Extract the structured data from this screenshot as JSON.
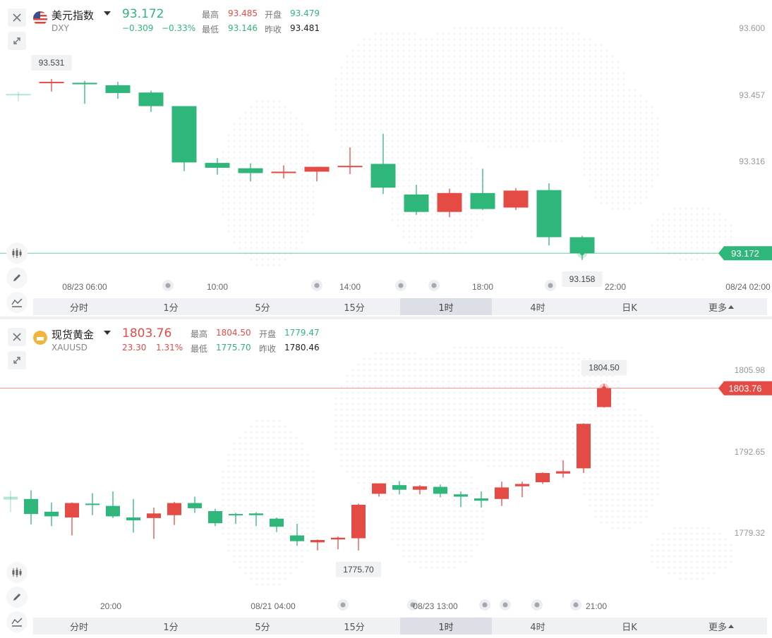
{
  "tabs": [
    {
      "label": "分时"
    },
    {
      "label": "1分"
    },
    {
      "label": "5分"
    },
    {
      "label": "15分"
    },
    {
      "label": "1时",
      "active": true
    },
    {
      "label": "4时"
    },
    {
      "label": "日K"
    },
    {
      "label": "更多"
    }
  ],
  "colors": {
    "up": "#e54b45",
    "down": "#2fb67a",
    "grid": "#e6e8eb"
  },
  "icons": [
    "close-icon",
    "expand-icon",
    "candlestick-icon",
    "pencil-icon",
    "indicator-icon",
    "event-marker-icon",
    "us-flag-icon",
    "gold-coin-icon"
  ],
  "panels": [
    {
      "name": "美元指数",
      "code": "DXY",
      "price": "93.172",
      "price_color": "down",
      "change": "−0.309",
      "change_pct": "−0.33%",
      "stats": {
        "high_label": "最高",
        "high": "93.485",
        "open_label": "开盘",
        "open": "93.479",
        "low_label": "最低",
        "low": "93.146",
        "prev_label": "昨收",
        "prev": "93.481"
      },
      "axis_labels": [
        "93.600",
        "93.457",
        "93.316"
      ],
      "last_price": "93.172",
      "max_label": "93.531",
      "min_label": "93.158",
      "time_labels": [
        "08/23 06:00",
        "10:00",
        "14:00",
        "18:00",
        "22:00",
        "08/24 02:00"
      ],
      "chart_data": {
        "type": "candlestick",
        "ylim": [
          93.12,
          93.65
        ],
        "candles": [
          {
            "o": 93.5,
            "h": 93.505,
            "l": 93.485,
            "c": 93.498,
            "partial": true
          },
          {
            "o": 93.525,
            "h": 93.531,
            "l": 93.505,
            "c": 93.525
          },
          {
            "o": 93.523,
            "h": 93.527,
            "l": 93.48,
            "c": 93.52
          },
          {
            "o": 93.518,
            "h": 93.525,
            "l": 93.49,
            "c": 93.502
          },
          {
            "o": 93.503,
            "h": 93.507,
            "l": 93.463,
            "c": 93.475
          },
          {
            "o": 93.475,
            "h": 93.475,
            "l": 93.341,
            "c": 93.359
          },
          {
            "o": 93.358,
            "h": 93.368,
            "l": 93.334,
            "c": 93.348
          },
          {
            "o": 93.347,
            "h": 93.357,
            "l": 93.32,
            "c": 93.337
          },
          {
            "o": 93.337,
            "h": 93.353,
            "l": 93.326,
            "c": 93.34
          },
          {
            "o": 93.34,
            "h": 93.35,
            "l": 93.32,
            "c": 93.35
          },
          {
            "o": 93.35,
            "h": 93.39,
            "l": 93.335,
            "c": 93.352
          },
          {
            "o": 93.356,
            "h": 93.418,
            "l": 93.294,
            "c": 93.307
          },
          {
            "o": 93.293,
            "h": 93.313,
            "l": 93.251,
            "c": 93.257
          },
          {
            "o": 93.257,
            "h": 93.305,
            "l": 93.246,
            "c": 93.296
          },
          {
            "o": 93.296,
            "h": 93.346,
            "l": 93.261,
            "c": 93.263
          },
          {
            "o": 93.266,
            "h": 93.306,
            "l": 93.261,
            "c": 93.301
          },
          {
            "o": 93.302,
            "h": 93.316,
            "l": 93.188,
            "c": 93.205
          },
          {
            "o": 93.205,
            "h": 93.208,
            "l": 93.158,
            "c": 93.172
          }
        ]
      }
    },
    {
      "name": "现货黄金",
      "code": "XAUUSD",
      "price": "1803.76",
      "price_color": "up",
      "change": "23.30",
      "change_pct": "1.31%",
      "stats": {
        "high_label": "最高",
        "high": "1804.50",
        "open_label": "开盘",
        "open": "1779.47",
        "low_label": "最低",
        "low": "1775.70",
        "prev_label": "昨收",
        "prev": "1780.46"
      },
      "axis_labels": [
        "1805.98",
        "1792.65",
        "1779.32"
      ],
      "last_price": "1803.76",
      "max_label": "1804.50",
      "min_label": "1775.70",
      "time_labels": [
        "20:00",
        "08/21 04:00",
        "08/23 13:00",
        "21:00"
      ],
      "chart_data": {
        "type": "candlestick",
        "ylim": [
          1767.5,
          1810.8
        ],
        "candles": [
          {
            "o": 1785.0,
            "h": 1786.0,
            "l": 1782.3,
            "c": 1784.5,
            "partial": true
          },
          {
            "o": 1784.6,
            "h": 1786.1,
            "l": 1780.2,
            "c": 1782.0
          },
          {
            "o": 1782.4,
            "h": 1784.0,
            "l": 1779.9,
            "c": 1781.6
          },
          {
            "o": 1781.4,
            "h": 1784.0,
            "l": 1778.3,
            "c": 1783.9
          },
          {
            "o": 1783.8,
            "h": 1785.6,
            "l": 1781.8,
            "c": 1783.7
          },
          {
            "o": 1783.4,
            "h": 1785.9,
            "l": 1781.3,
            "c": 1781.6
          },
          {
            "o": 1781.4,
            "h": 1784.6,
            "l": 1778.8,
            "c": 1780.9
          },
          {
            "o": 1781.3,
            "h": 1783.1,
            "l": 1777.7,
            "c": 1782.1
          },
          {
            "o": 1781.8,
            "h": 1784.1,
            "l": 1780.1,
            "c": 1783.9
          },
          {
            "o": 1783.9,
            "h": 1785.0,
            "l": 1782.2,
            "c": 1783.0
          },
          {
            "o": 1782.5,
            "h": 1782.9,
            "l": 1779.9,
            "c": 1780.4
          },
          {
            "o": 1782.0,
            "h": 1782.2,
            "l": 1780.3,
            "c": 1781.9
          },
          {
            "o": 1782.1,
            "h": 1782.3,
            "l": 1779.9,
            "c": 1781.8
          },
          {
            "o": 1781.2,
            "h": 1781.4,
            "l": 1778.9,
            "c": 1779.8
          },
          {
            "o": 1778.3,
            "h": 1780.3,
            "l": 1776.5,
            "c": 1777.3
          },
          {
            "o": 1777.1,
            "h": 1777.6,
            "l": 1775.7,
            "c": 1777.5
          },
          {
            "o": 1777.6,
            "h": 1778.1,
            "l": 1775.9,
            "c": 1777.9
          },
          {
            "o": 1777.8,
            "h": 1783.8,
            "l": 1775.7,
            "c": 1783.6
          },
          {
            "o": 1785.5,
            "h": 1787.3,
            "l": 1785.0,
            "c": 1787.3
          },
          {
            "o": 1787.0,
            "h": 1787.7,
            "l": 1785.4,
            "c": 1786.2
          },
          {
            "o": 1786.2,
            "h": 1787.0,
            "l": 1785.4,
            "c": 1786.8
          },
          {
            "o": 1786.7,
            "h": 1787.1,
            "l": 1784.9,
            "c": 1785.5
          },
          {
            "o": 1785.4,
            "h": 1785.9,
            "l": 1783.2,
            "c": 1785.0
          },
          {
            "o": 1784.7,
            "h": 1785.9,
            "l": 1783.1,
            "c": 1784.3
          },
          {
            "o": 1784.6,
            "h": 1787.6,
            "l": 1783.4,
            "c": 1786.6
          },
          {
            "o": 1786.8,
            "h": 1787.6,
            "l": 1784.9,
            "c": 1787.2
          },
          {
            "o": 1787.5,
            "h": 1789.2,
            "l": 1787.2,
            "c": 1789.1
          },
          {
            "o": 1789.0,
            "h": 1791.3,
            "l": 1788.3,
            "c": 1789.4
          },
          {
            "o": 1789.9,
            "h": 1797.7,
            "l": 1789.1,
            "c": 1797.6
          },
          {
            "o": 1800.5,
            "h": 1804.5,
            "l": 1800.4,
            "c": 1803.76
          }
        ]
      }
    }
  ]
}
